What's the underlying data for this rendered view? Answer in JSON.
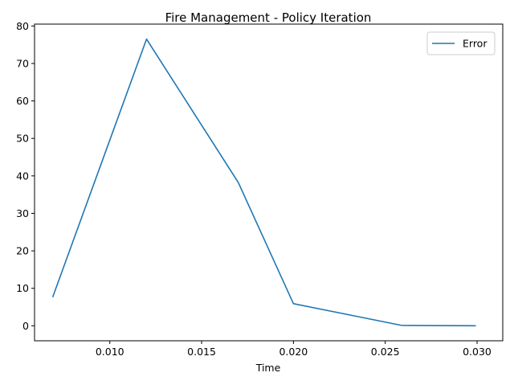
{
  "chart_data": {
    "type": "line",
    "title": "Fire Management - Policy Iteration",
    "xlabel": "Time",
    "ylabel": "",
    "xlim": [
      0.0059,
      0.0314
    ],
    "ylim": [
      -4.0,
      80.5
    ],
    "x_ticks": [
      0.01,
      0.015,
      0.02,
      0.025,
      0.03
    ],
    "x_tick_labels": [
      "0.010",
      "0.015",
      "0.020",
      "0.025",
      "0.030"
    ],
    "y_ticks": [
      0,
      10,
      20,
      30,
      40,
      50,
      60,
      70,
      80
    ],
    "y_tick_labels": [
      "0",
      "10",
      "20",
      "30",
      "40",
      "50",
      "60",
      "70",
      "80"
    ],
    "grid": false,
    "legend_position": "upper right",
    "series": [
      {
        "name": "Error",
        "color": "#1f77b4",
        "x": [
          0.0069,
          0.012,
          0.017,
          0.02,
          0.0259,
          0.0299
        ],
        "y": [
          7.8,
          76.5,
          38.2,
          5.9,
          0.1,
          0.0
        ]
      }
    ]
  }
}
